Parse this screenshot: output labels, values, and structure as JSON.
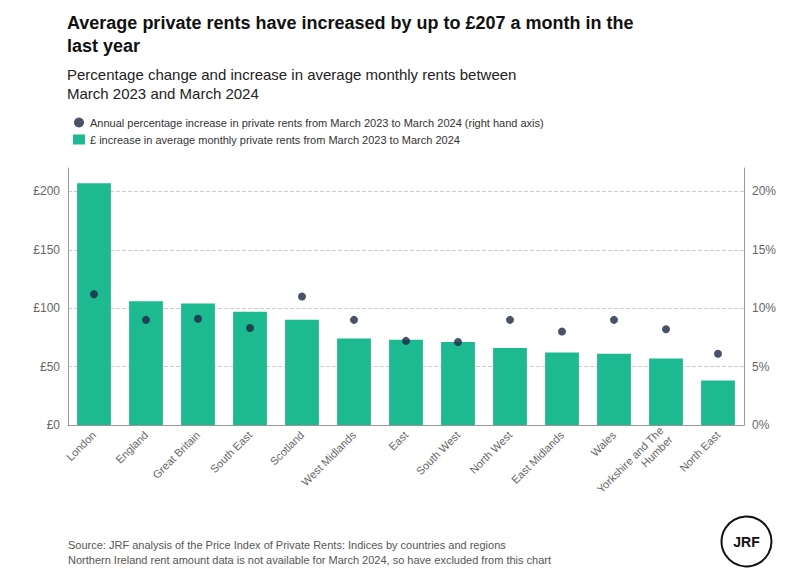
{
  "chart_data": {
    "type": "bar",
    "title": "Average private rents have increased by up to £207 a month in the\nlast year",
    "subtitle": "Percentage change and increase in average monthly rents between\nMarch 2023 and March 2024",
    "categories": [
      "London",
      "England",
      "Great Britain",
      "South East",
      "Scotland",
      "West Midlands",
      "East",
      "South West",
      "North West",
      "East Midlands",
      "Wales",
      "Yorkshire and The\nHumber",
      "North East"
    ],
    "series": [
      {
        "name": "Annual percentage increase in private rents from March 2023 to March 2024 (right hand axis)",
        "type": "scatter",
        "marker": "circle",
        "color": "#1a2744",
        "axis": "y2",
        "values": [
          11.2,
          9.0,
          9.1,
          8.3,
          11.0,
          9.0,
          7.2,
          7.1,
          9.0,
          8.0,
          9.0,
          8.2,
          6.1
        ]
      },
      {
        "name": "£ increase in average monthly private rents from March 2023 to March 2024",
        "type": "bar",
        "color": "#1db991",
        "values": [
          207,
          106,
          104,
          97,
          90,
          74,
          73,
          71,
          66,
          62,
          61,
          57,
          38
        ]
      }
    ],
    "ylim": [
      0,
      220
    ],
    "yticks": [
      {
        "value": 0,
        "label": "£0"
      },
      {
        "value": 50,
        "label": "£50"
      },
      {
        "value": 100,
        "label": "£100"
      },
      {
        "value": 150,
        "label": "£150"
      },
      {
        "value": 200,
        "label": "£200"
      }
    ],
    "y2lim": [
      0,
      22
    ],
    "y2ticks": [
      {
        "value": 0,
        "label": "0%"
      },
      {
        "value": 5,
        "label": "5%"
      },
      {
        "value": 10,
        "label": "10%"
      },
      {
        "value": 15,
        "label": "15%"
      },
      {
        "value": 20,
        "label": "20%"
      }
    ],
    "grid": true,
    "legend": "upper left",
    "annotations": [
      "Source: JRF analysis of the Price Index of Private Rents: Indices by countries and regions\nNorthern Ireland rent amount data is not available for March 2024, so have excluded from this chart",
      "JRF"
    ]
  }
}
